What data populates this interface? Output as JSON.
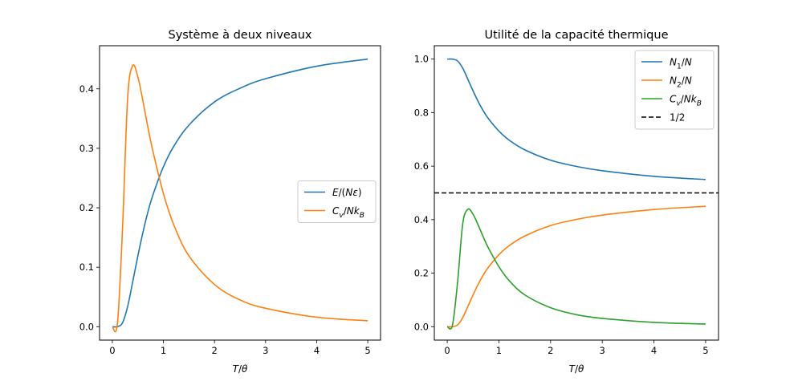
{
  "chart_data": [
    {
      "type": "line",
      "title": "Système à deux niveaux",
      "xlabel": "T/θ",
      "ylabel": "",
      "xlim": [
        -0.25,
        5.25
      ],
      "ylim": [
        -0.0225,
        0.4725
      ],
      "xticks": [
        "0",
        "1",
        "2",
        "3",
        "4",
        "5"
      ],
      "yticks": [
        "0.0",
        "0.1",
        "0.2",
        "0.3",
        "0.4"
      ],
      "legend_position": "center-right",
      "x": [
        0,
        0.1,
        0.2,
        0.3,
        0.4,
        0.5,
        0.6,
        0.7,
        0.8,
        1.0,
        1.2,
        1.5,
        2.0,
        2.5,
        3.0,
        4.0,
        5.0
      ],
      "series": [
        {
          "name": "E/(Nε)",
          "color": "#1f77b4",
          "values": [
            0,
            5e-05,
            0.0067,
            0.034,
            0.076,
            0.119,
            0.159,
            0.194,
            0.223,
            0.269,
            0.303,
            0.339,
            0.378,
            0.401,
            0.417,
            0.438,
            0.45
          ]
        },
        {
          "name": "Cv/NkB",
          "color": "#ff7f0e",
          "values": [
            0,
            0.005,
            0.166,
            0.385,
            0.439,
            0.42,
            0.379,
            0.334,
            0.293,
            0.224,
            0.172,
            0.119,
            0.071,
            0.045,
            0.031,
            0.016,
            0.01
          ]
        }
      ]
    },
    {
      "type": "line",
      "title": "Utilité de la capacité thermique",
      "xlabel": "T/θ",
      "ylabel": "",
      "xlim": [
        -0.25,
        5.25
      ],
      "ylim": [
        -0.05,
        1.05
      ],
      "xticks": [
        "0",
        "1",
        "2",
        "3",
        "4",
        "5"
      ],
      "yticks": [
        "0.0",
        "0.2",
        "0.4",
        "0.6",
        "0.8",
        "1.0"
      ],
      "legend_position": "top-right",
      "x": [
        0,
        0.1,
        0.2,
        0.3,
        0.4,
        0.5,
        0.6,
        0.7,
        0.8,
        1.0,
        1.2,
        1.5,
        2.0,
        2.5,
        3.0,
        4.0,
        5.0
      ],
      "series": [
        {
          "name": "N1/N",
          "color": "#1f77b4",
          "values": [
            1.0,
            0.99995,
            0.9933,
            0.966,
            0.924,
            0.881,
            0.841,
            0.806,
            0.777,
            0.731,
            0.697,
            0.661,
            0.622,
            0.599,
            0.583,
            0.562,
            0.55
          ]
        },
        {
          "name": "N2/N",
          "color": "#ff7f0e",
          "values": [
            0,
            5e-05,
            0.0067,
            0.034,
            0.076,
            0.119,
            0.159,
            0.194,
            0.223,
            0.269,
            0.303,
            0.339,
            0.378,
            0.401,
            0.417,
            0.438,
            0.45
          ]
        },
        {
          "name": "Cv/NkB",
          "color": "#2ca02c",
          "values": [
            0,
            0.005,
            0.166,
            0.385,
            0.439,
            0.42,
            0.379,
            0.334,
            0.293,
            0.224,
            0.172,
            0.119,
            0.071,
            0.045,
            0.031,
            0.016,
            0.01
          ]
        }
      ],
      "hline": {
        "name": "1/2",
        "y": 0.5,
        "color": "#000000",
        "style": "dashed"
      }
    }
  ]
}
